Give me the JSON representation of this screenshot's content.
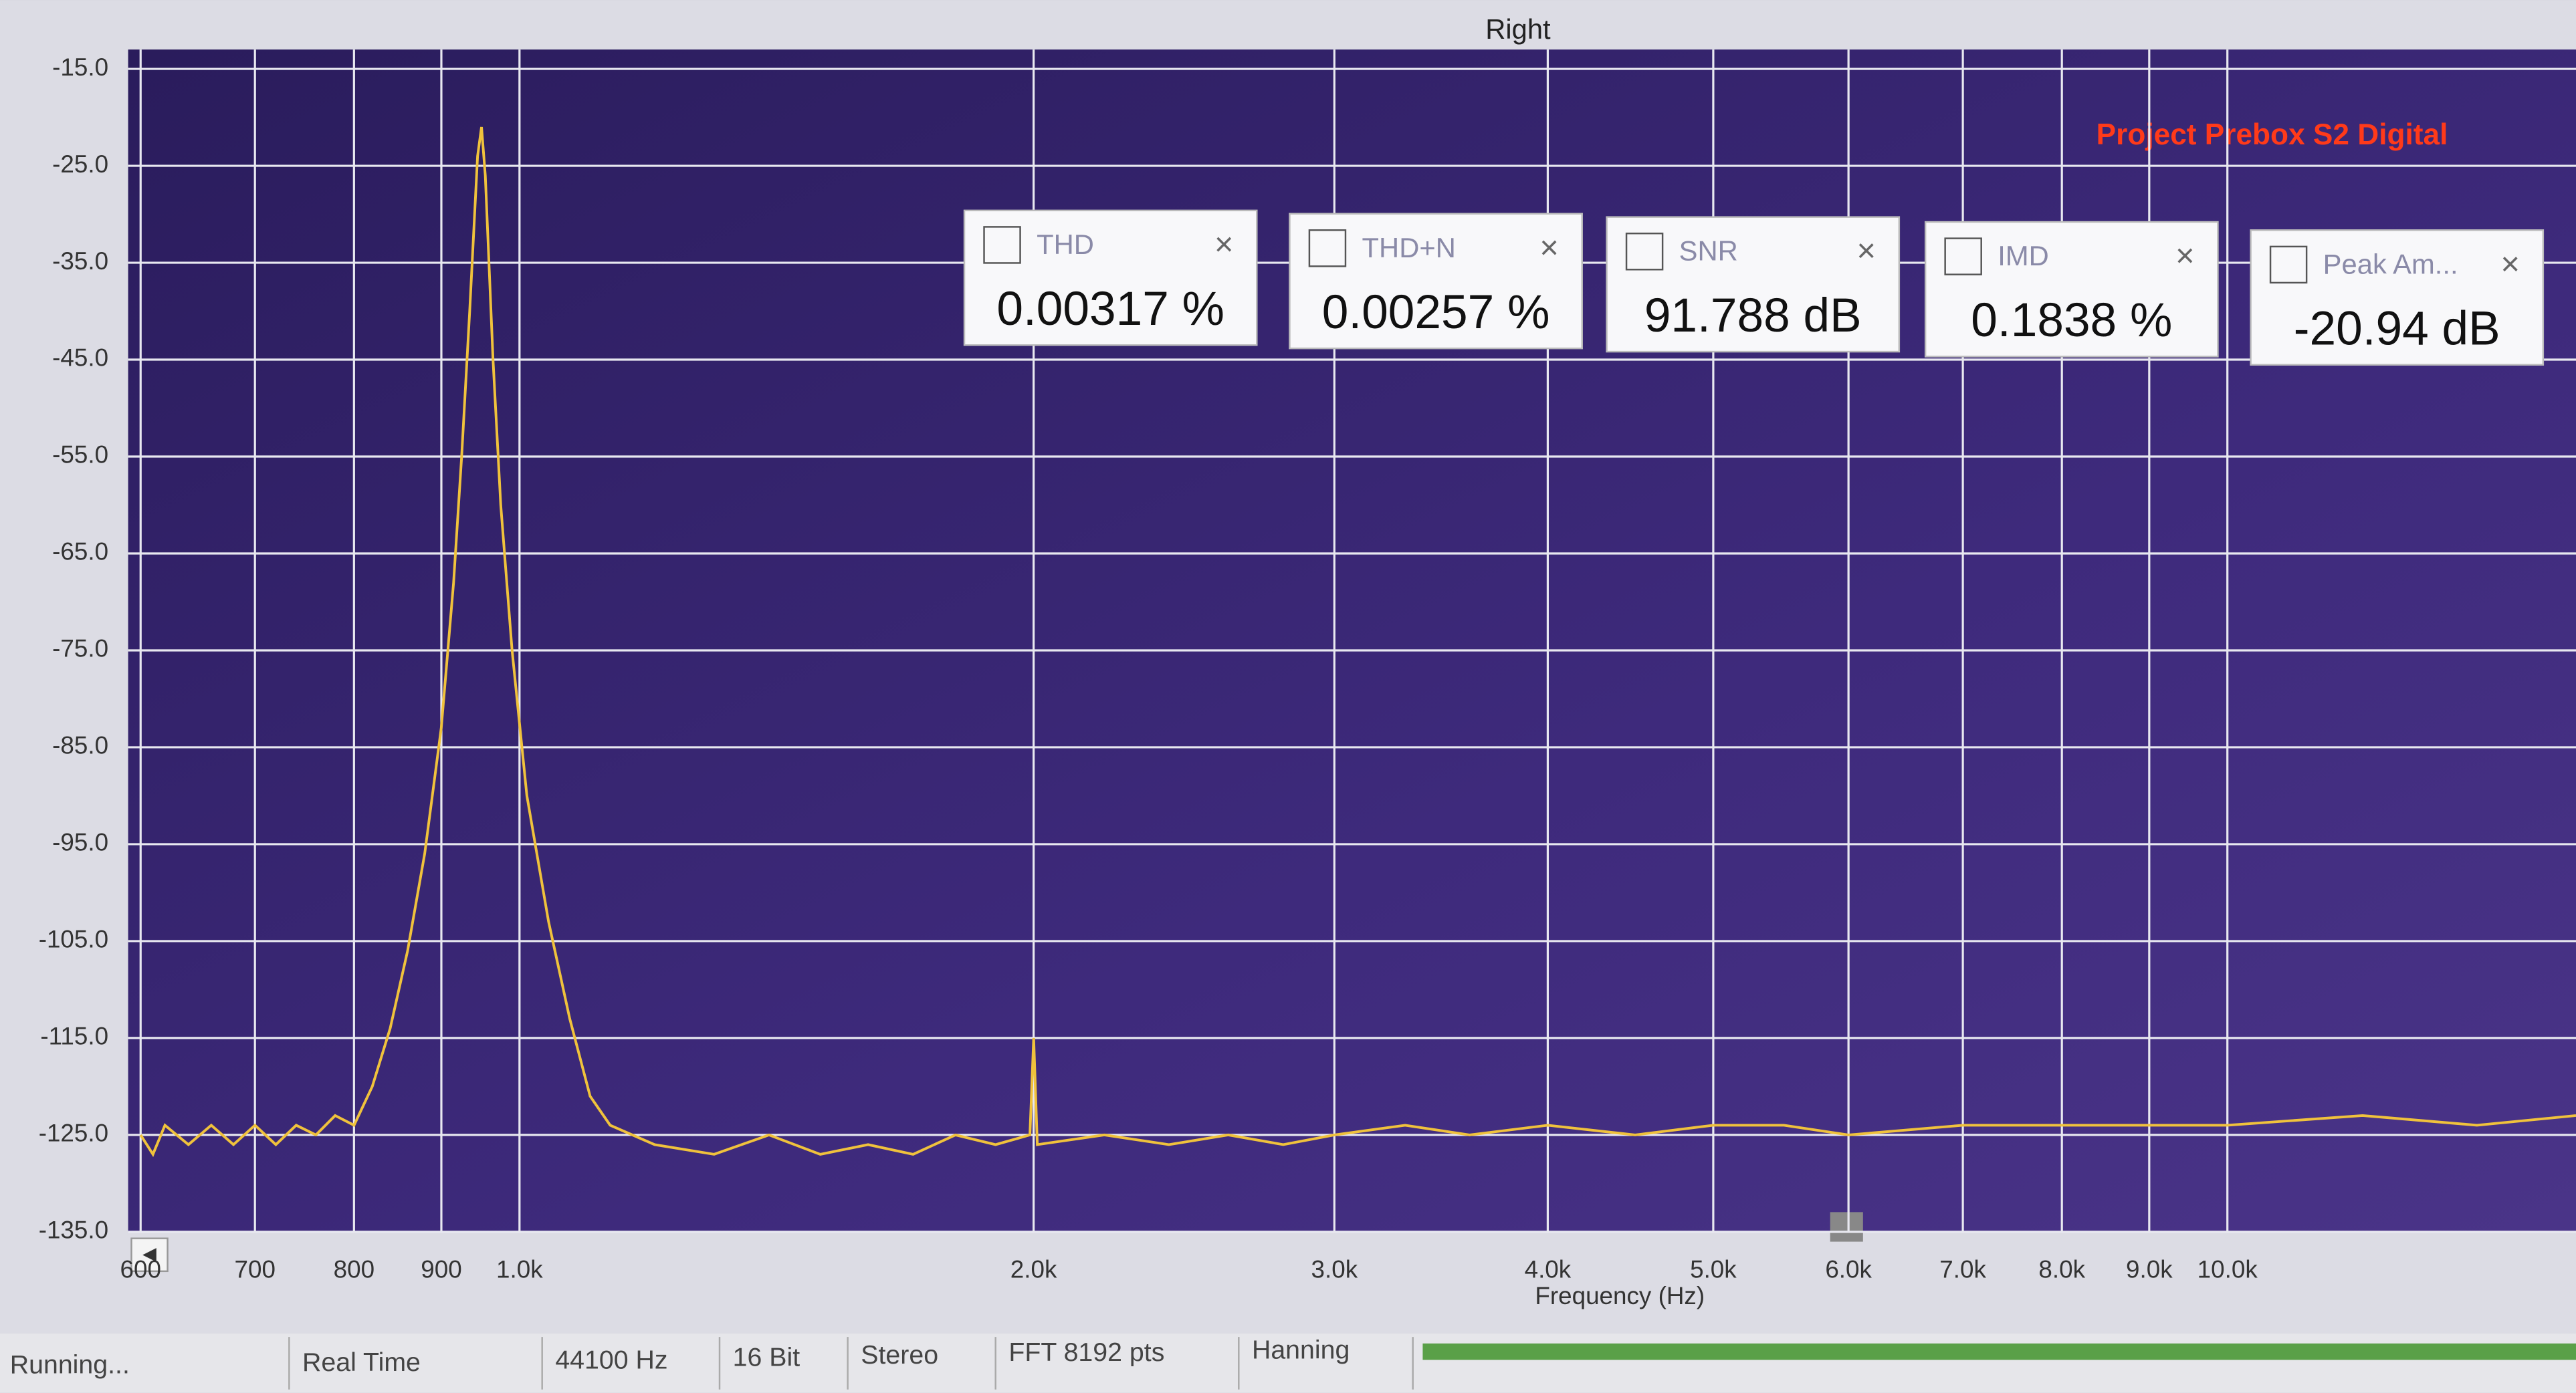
{
  "chart_data": {
    "type": "line",
    "title": "Right",
    "annotation": "Project Prebox S2 Digital",
    "x_label": "Frequency (Hz)",
    "x_scale": "log",
    "grid": true,
    "color": "#f0c23c",
    "x": [
      600,
      610,
      620,
      640,
      660,
      680,
      700,
      720,
      740,
      760,
      780,
      800,
      820,
      840,
      860,
      880,
      900,
      915,
      925,
      935,
      945,
      950,
      955,
      965,
      975,
      990,
      1010,
      1040,
      1070,
      1100,
      1130,
      1200,
      1300,
      1400,
      1500,
      1600,
      1700,
      1800,
      1900,
      1990,
      2000,
      2010,
      2200,
      2400,
      2600,
      2800,
      3000,
      3300,
      3600,
      4000,
      4500,
      5000,
      5500,
      6000,
      7000,
      8000,
      9000,
      10000,
      12000,
      14000,
      16000
    ],
    "values": [
      -125,
      -127,
      -124,
      -126,
      -124,
      -126,
      -124,
      -126,
      -124,
      -125,
      -123,
      -124,
      -120,
      -114,
      -106,
      -96,
      -83,
      -68,
      -55,
      -40,
      -24,
      -21,
      -26,
      -45,
      -60,
      -75,
      -90,
      -103,
      -113,
      -121,
      -124,
      -126,
      -127,
      -125,
      -127,
      -126,
      -127,
      -125,
      -126,
      -125,
      -115,
      -126,
      -125,
      -126,
      -125,
      -126,
      -125,
      -124,
      -125,
      -124,
      -125,
      -124,
      -124,
      -125,
      -124,
      -124,
      -124,
      -124,
      -123,
      -124,
      -123
    ],
    "xlim": [
      590,
      16000
    ],
    "xticks": [
      600,
      700,
      800,
      900,
      {
        "value": 1000,
        "label": "1.0k"
      },
      {
        "value": 2000,
        "label": "2.0k"
      },
      {
        "value": 3000,
        "label": "3.0k"
      },
      {
        "value": 4000,
        "label": "4.0k"
      },
      {
        "value": 5000,
        "label": "5.0k"
      },
      {
        "value": 6000,
        "label": "6.0k"
      },
      {
        "value": 7000,
        "label": "7.0k"
      },
      {
        "value": 8000,
        "label": "8.0k"
      },
      {
        "value": 9000,
        "label": "9.0k"
      },
      {
        "value": 10000,
        "label": "10.0k"
      }
    ],
    "ylim": [
      -135,
      -13
    ],
    "yticks": [
      {
        "value": -15,
        "label": "-15.0"
      },
      {
        "value": -25,
        "label": "-25.0"
      },
      {
        "value": -35,
        "label": "-35.0"
      },
      {
        "value": -45,
        "label": "-45.0"
      },
      {
        "value": -55,
        "label": "-55.0"
      },
      {
        "value": -65,
        "label": "-65.0"
      },
      {
        "value": -75,
        "label": "-75.0"
      },
      {
        "value": -85,
        "label": "-85.0"
      },
      {
        "value": -95,
        "label": "-95.0"
      },
      {
        "value": -105,
        "label": "-105.0"
      },
      {
        "value": -115,
        "label": "-115.0"
      },
      {
        "value": -125,
        "label": "-125.0"
      },
      {
        "value": -135,
        "label": "-135.0"
      }
    ]
  },
  "meters": [
    {
      "name": "THD",
      "value": "0.00317 %"
    },
    {
      "name": "THD+N",
      "value": "0.00257 %"
    },
    {
      "name": "SNR",
      "value": "91.788 dB"
    },
    {
      "name": "IMD",
      "value": "0.1838 %"
    },
    {
      "name": "Peak Am...",
      "value": "-20.94 dB"
    }
  ],
  "status_bar": [
    "Running...",
    "Real Time",
    "44100 Hz",
    "16 Bit",
    "Stereo",
    "FFT 8192 pts",
    "Hanning"
  ]
}
